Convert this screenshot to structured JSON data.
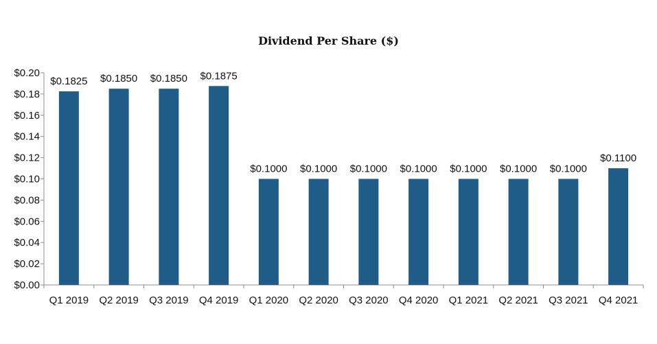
{
  "chart_data": {
    "type": "bar",
    "title": "Dividend Per Share ($)",
    "categories": [
      "Q1 2019",
      "Q2 2019",
      "Q3 2019",
      "Q4 2019",
      "Q1 2020",
      "Q2 2020",
      "Q3 2020",
      "Q4 2020",
      "Q1 2021",
      "Q2 2021",
      "Q3 2021",
      "Q4 2021"
    ],
    "values": [
      0.1825,
      0.185,
      0.185,
      0.1875,
      0.1,
      0.1,
      0.1,
      0.1,
      0.1,
      0.1,
      0.1,
      0.11
    ],
    "data_labels": [
      "$0.1825",
      "$0.1850",
      "$0.1850",
      "$0.1875",
      "$0.1000",
      "$0.1000",
      "$0.1000",
      "$0.1000",
      "$0.1000",
      "$0.1000",
      "$0.1000",
      "$0.1100"
    ],
    "y_ticks": [
      0.0,
      0.02,
      0.04,
      0.06,
      0.08,
      0.1,
      0.12,
      0.14,
      0.16,
      0.18,
      0.2
    ],
    "y_tick_labels": [
      "$0.00",
      "$0.02",
      "$0.04",
      "$0.06",
      "$0.08",
      "$0.10",
      "$0.12",
      "$0.14",
      "$0.16",
      "$0.18",
      "$0.20"
    ],
    "ylim": [
      0,
      0.2
    ],
    "xlabel": "",
    "ylabel": "",
    "grid": false,
    "legend": "none",
    "bar_color": "#1F5C87"
  }
}
